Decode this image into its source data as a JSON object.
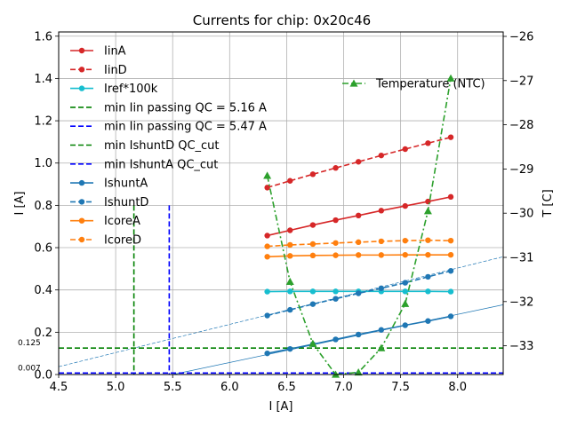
{
  "chart_data": {
    "type": "line",
    "title": "Currents for chip: 0x20c46",
    "xlabel": "I [A]",
    "ylabel": "I [A]",
    "y2label": "T [C]",
    "xlim": [
      4.5,
      8.4
    ],
    "ylim": [
      0.0,
      1.62
    ],
    "y2lim": [
      -33.65,
      -25.9
    ],
    "grid": true,
    "x_ticks": [
      4.5,
      5.0,
      5.5,
      6.0,
      6.5,
      7.0,
      7.5,
      8.0
    ],
    "x_tick_labels": [
      "4.5",
      "5.0",
      "5.5",
      "6.0",
      "6.5",
      "7.0",
      "7.5",
      "8.0"
    ],
    "y_ticks": [
      0.0,
      0.2,
      0.4,
      0.6,
      0.8,
      1.0,
      1.2,
      1.4,
      1.6
    ],
    "y_tick_labels": [
      "0.0",
      "0.2",
      "0.4",
      "0.6",
      "0.8",
      "1.0",
      "1.2",
      "1.4",
      "1.6"
    ],
    "y2_ticks": [
      -33,
      -32,
      -31,
      -30,
      -29,
      -28,
      -27,
      -26
    ],
    "y2_tick_labels": [
      "−33",
      "−32",
      "−31",
      "−30",
      "−29",
      "−28",
      "−27",
      "−26"
    ],
    "x": [
      6.33,
      6.53,
      6.73,
      6.93,
      7.13,
      7.33,
      7.54,
      7.74,
      7.94
    ],
    "series": [
      {
        "name": "IinA",
        "color": "#d62728",
        "style": "solid",
        "marker": "circle",
        "values": [
          0.657,
          0.682,
          0.707,
          0.73,
          0.752,
          0.775,
          0.797,
          0.818,
          0.84
        ]
      },
      {
        "name": "IinD",
        "color": "#d62728",
        "style": "dashed",
        "marker": "circle",
        "values": [
          0.884,
          0.916,
          0.947,
          0.977,
          1.006,
          1.036,
          1.066,
          1.094,
          1.122
        ]
      },
      {
        "name": "Iref*100k",
        "color": "#17becf",
        "style": "solid",
        "marker": "circle",
        "values": [
          0.392,
          0.393,
          0.393,
          0.393,
          0.393,
          0.393,
          0.393,
          0.393,
          0.392
        ]
      },
      {
        "name": "IshuntA",
        "color": "#1f77b4",
        "style": "solid",
        "marker": "circle",
        "values": [
          0.1,
          0.121,
          0.143,
          0.166,
          0.189,
          0.211,
          0.233,
          0.253,
          0.275
        ]
      },
      {
        "name": "IshuntD",
        "color": "#1f77b4",
        "style": "dashed",
        "marker": "circle",
        "values": [
          0.279,
          0.306,
          0.333,
          0.358,
          0.384,
          0.408,
          0.434,
          0.462,
          0.49
        ]
      },
      {
        "name": "IcoreA",
        "color": "#ff7f0e",
        "style": "solid",
        "marker": "circle",
        "values": [
          0.557,
          0.561,
          0.563,
          0.564,
          0.565,
          0.565,
          0.566,
          0.566,
          0.566
        ]
      },
      {
        "name": "IcoreD",
        "color": "#ff7f0e",
        "style": "dashed",
        "marker": "circle",
        "values": [
          0.606,
          0.613,
          0.617,
          0.622,
          0.626,
          0.63,
          0.633,
          0.635,
          0.633
        ]
      }
    ],
    "temperature_series": {
      "name": "Temperature (NTC)",
      "color": "#2ca02c",
      "style": "dashdot",
      "marker": "triangle",
      "axis": "right",
      "values": [
        -29.15,
        -31.55,
        -32.95,
        -33.65,
        -33.6,
        -33.05,
        -32.05,
        -29.95,
        -26.95
      ]
    },
    "vlines": [
      {
        "name": "min Iin passing QC = 5.16 A",
        "x": 5.16,
        "ymax": 0.8,
        "color": "#008000"
      },
      {
        "name": "min Iin passing QC = 5.47 A",
        "x": 5.47,
        "ymax": 0.8,
        "color": "#0000ff"
      }
    ],
    "hlines": [
      {
        "name": "min IshuntD QC_cut",
        "y": 0.125,
        "label": "0.125",
        "color": "#008000"
      },
      {
        "name": "min IshuntA QC_cut",
        "y": 0.007,
        "label": "0.007",
        "color": "#0000ff"
      }
    ],
    "fit_lines": [
      {
        "name": "IshuntD fit",
        "style": "dashed",
        "color": "#1f77b4",
        "x": [
          4.5,
          8.4
        ],
        "y": [
          0.037,
          0.557
        ]
      },
      {
        "name": "IshuntA fit",
        "style": "solid",
        "color": "#1f77b4",
        "x": [
          5.5,
          8.4
        ],
        "y": [
          0.0,
          0.33
        ]
      }
    ],
    "legend": {
      "placement": "top-left",
      "entries": [
        "IinA",
        "IinD",
        "Iref*100k",
        "min Iin passing QC = 5.16 A",
        "min Iin passing QC = 5.47 A",
        "min IshuntD QC_cut",
        "min IshuntA QC_cut",
        "IshuntA",
        "IshuntD",
        "IcoreA",
        "IcoreD"
      ]
    },
    "legend2": {
      "placement": "top-right",
      "entries": [
        "Temperature (NTC)"
      ]
    }
  }
}
